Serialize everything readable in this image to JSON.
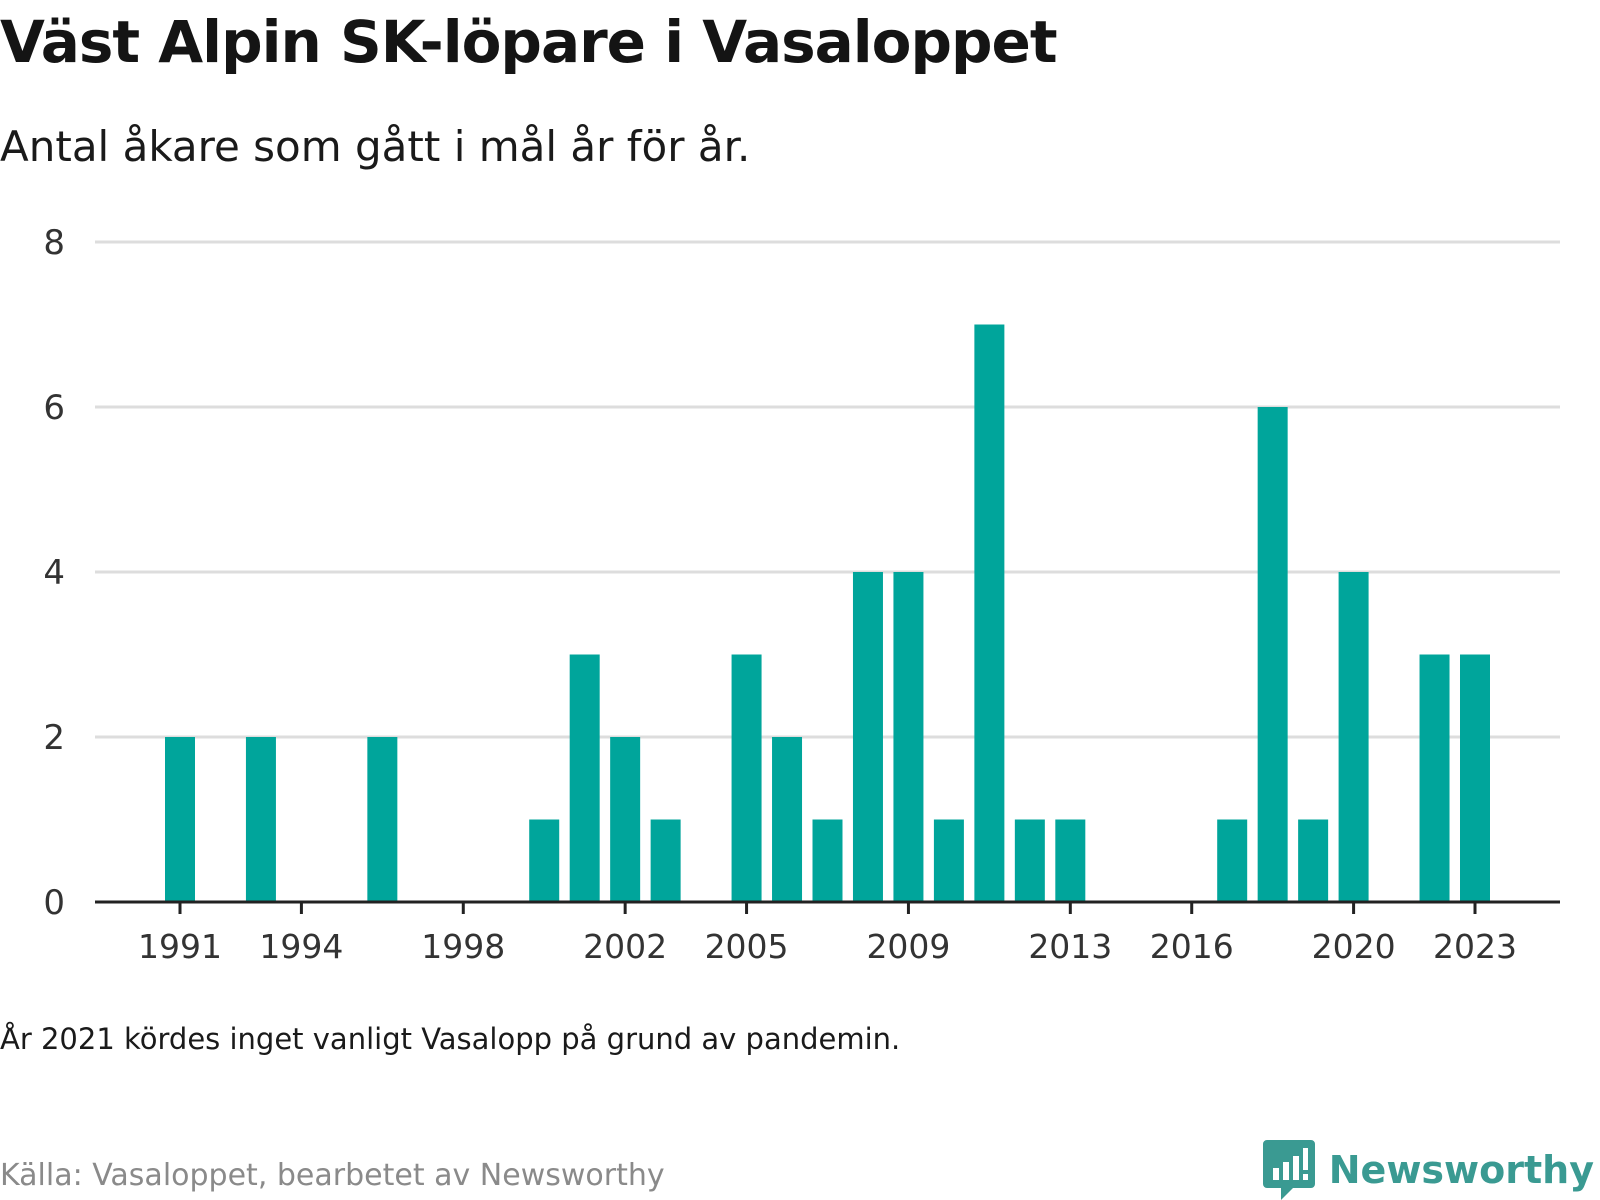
{
  "title": "Väst Alpin SK-löpare i Vasaloppet",
  "subtitle": "Antal åkare som gått i mål år för år.",
  "note": "År 2021 kördes inget vanligt Vasalopp på grund av pandemin.",
  "source": "Källa: Vasaloppet, bearbetet av Newsworthy",
  "brand": {
    "name": "Newsworthy",
    "icon": "newsworthy-logo-icon"
  },
  "colors": {
    "bar": "#00A59B",
    "grid": "#dddddd",
    "axis": "#222222",
    "brand": "#3a9a92"
  },
  "chart_data": {
    "type": "bar",
    "title": "Väst Alpin SK-löpare i Vasaloppet",
    "xlabel": "",
    "ylabel": "",
    "ylim": [
      0,
      8
    ],
    "yticks": [
      0,
      2,
      4,
      6,
      8
    ],
    "xticks": [
      "1991",
      "1994",
      "1998",
      "2002",
      "2005",
      "2009",
      "2013",
      "2016",
      "2020",
      "2023"
    ],
    "grid": true,
    "x": [
      1991,
      1993,
      1996,
      2000,
      2001,
      2002,
      2003,
      2005,
      2006,
      2007,
      2008,
      2009,
      2010,
      2011,
      2012,
      2013,
      2017,
      2018,
      2019,
      2020,
      2022,
      2023
    ],
    "values": [
      2,
      2,
      2,
      1,
      3,
      2,
      1,
      3,
      2,
      1,
      4,
      4,
      1,
      7,
      1,
      1,
      1,
      6,
      1,
      4,
      3,
      3
    ]
  }
}
